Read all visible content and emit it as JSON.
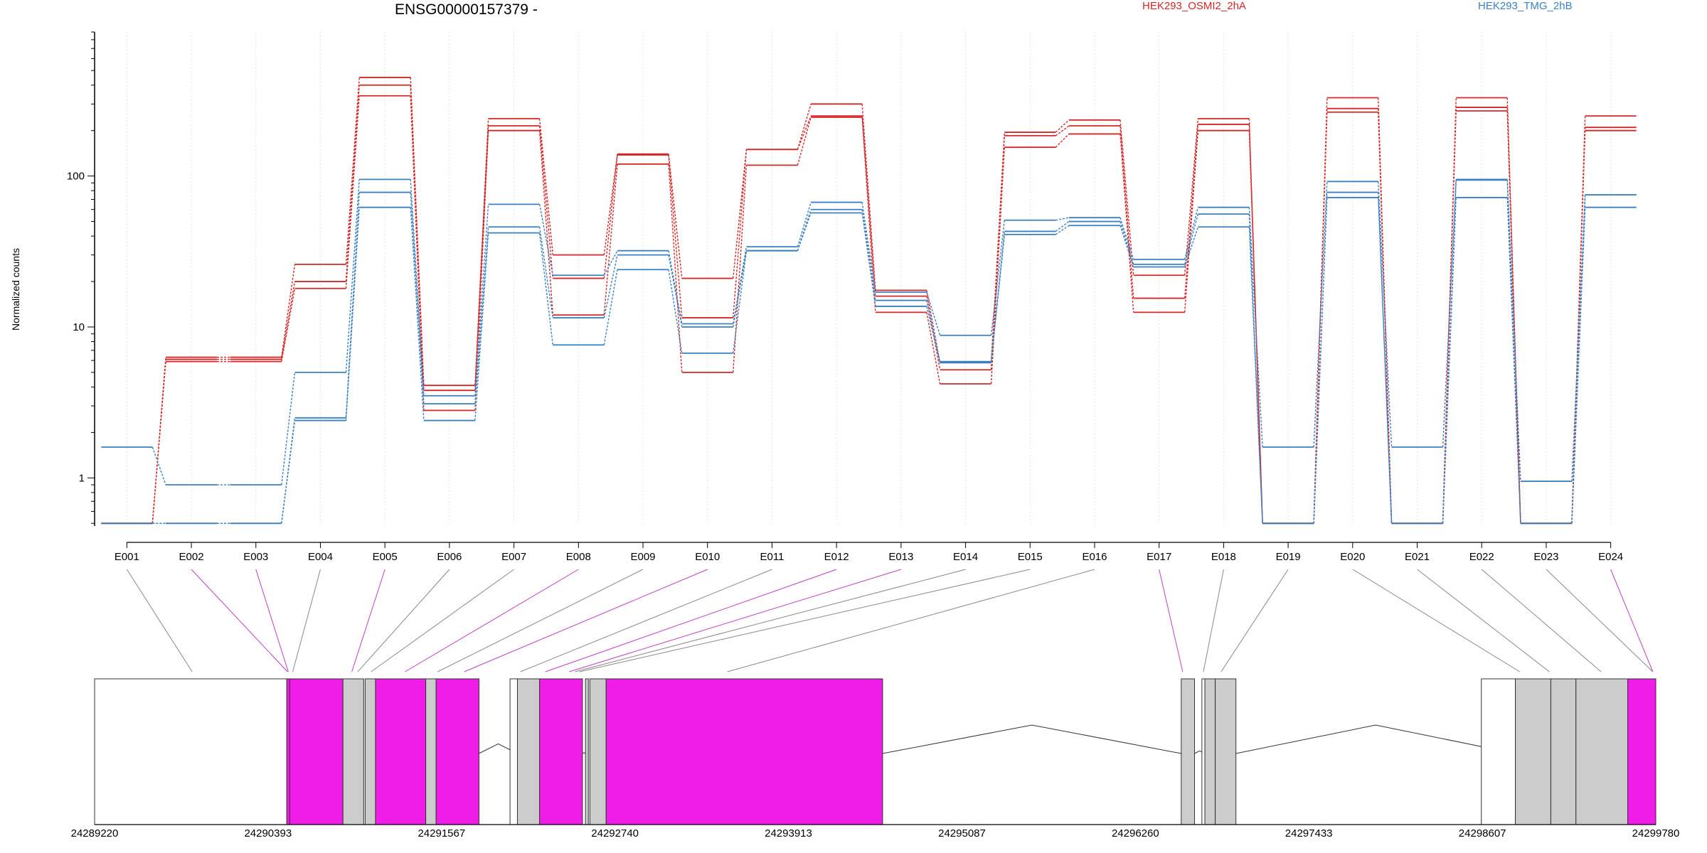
{
  "title": "ENSG00000157379 -",
  "ylabel": "Normalized counts",
  "colors": {
    "conditionA": "#d62728",
    "conditionB": "#3b80c0",
    "exon_highlight": "#f01de8",
    "exon_normal": "#cccccc",
    "link_plain": "#888888"
  },
  "legend": [
    {
      "label": "HEK293_OSMI2_2hA",
      "color": "#d62728"
    },
    {
      "label": "HEK293_TMG_2hB",
      "color": "#3b80c0"
    }
  ],
  "chart_data": {
    "type": "line",
    "y_scale": "log",
    "ylabel": "Normalized counts",
    "y_ticks": [
      "1",
      "10",
      "100"
    ],
    "y_tick_values": [
      1,
      10,
      100
    ],
    "ylim": [
      0.48,
      900
    ],
    "categories": [
      "E001",
      "E002",
      "E003",
      "E004",
      "E005",
      "E006",
      "E007",
      "E008",
      "E009",
      "E010",
      "E011",
      "E012",
      "E013",
      "E014",
      "E015",
      "E016",
      "E017",
      "E018",
      "E019",
      "E020",
      "E021",
      "E022",
      "E023",
      "E024"
    ],
    "highlighted_exons": [
      "E002",
      "E003",
      "E005",
      "E008",
      "E010",
      "E012",
      "E013",
      "E017",
      "E024"
    ],
    "series": [
      {
        "name": "HEK293_OSMI2_2hA",
        "group": "A",
        "values": [
          0.5,
          6.3,
          6.3,
          26,
          450,
          4.1,
          240,
          30,
          140,
          21,
          150,
          300,
          17.5,
          5.8,
          195,
          235,
          22,
          240,
          0.5,
          330,
          0.5,
          330,
          0.5,
          250
        ]
      },
      {
        "name": "HEK293_OSMI2_2hA",
        "group": "A",
        "values": [
          0.5,
          6.1,
          6.1,
          20,
          400,
          3.8,
          215,
          21,
          138,
          11.5,
          150,
          250,
          16,
          5.2,
          185,
          215,
          15.5,
          220,
          0.5,
          280,
          0.5,
          285,
          0.5,
          210
        ]
      },
      {
        "name": "HEK293_OSMI2_2hA",
        "group": "A",
        "values": [
          0.5,
          5.9,
          5.9,
          18,
          340,
          2.8,
          200,
          12,
          120,
          5,
          118,
          245,
          12.5,
          4.2,
          155,
          190,
          12.5,
          200,
          0.5,
          265,
          0.5,
          270,
          0.5,
          200
        ]
      },
      {
        "name": "HEK293_TMG_2hB",
        "group": "B",
        "values": [
          1.6,
          0.9,
          0.9,
          5,
          95,
          3.5,
          65,
          22,
          32,
          10.5,
          34,
          67,
          17,
          8.8,
          51,
          53,
          28,
          62,
          1.6,
          92,
          1.6,
          95,
          0.95,
          75
        ]
      },
      {
        "name": "HEK293_TMG_2hB",
        "group": "B",
        "values": [
          0.5,
          0.5,
          0.5,
          2.5,
          78,
          3.1,
          46,
          11.5,
          30,
          10,
          32,
          60,
          15,
          5.9,
          43,
          50,
          26,
          56,
          0.5,
          78,
          0.5,
          94,
          0.5,
          75
        ]
      },
      {
        "name": "HEK293_TMG_2hB",
        "group": "B",
        "values": [
          0.5,
          0.5,
          0.5,
          2.4,
          62,
          2.4,
          42,
          7.6,
          24,
          6.7,
          32,
          57,
          13.7,
          5.8,
          41,
          47,
          25,
          46,
          0.5,
          72,
          0.5,
          72,
          0.5,
          62
        ]
      }
    ],
    "gene_model": {
      "x_ticks": [
        "24289220",
        "24290393",
        "24291567",
        "24292740",
        "24293913",
        "24295087",
        "24296260",
        "24297433",
        "24298607",
        "24299780"
      ],
      "x_tick_values": [
        24289220,
        24290393,
        24291567,
        24292740,
        24293913,
        24295087,
        24296260,
        24297433,
        24298607,
        24299780
      ],
      "xlim": [
        24289220,
        24299780
      ],
      "exons": [
        {
          "start": 24290520,
          "end": 24290540,
          "highlight": true
        },
        {
          "start": 24290540,
          "end": 24290900,
          "highlight": true
        },
        {
          "start": 24290900,
          "end": 24291040,
          "highlight": false
        },
        {
          "start": 24291050,
          "end": 24291120,
          "highlight": false
        },
        {
          "start": 24291120,
          "end": 24291460,
          "highlight": true
        },
        {
          "start": 24291460,
          "end": 24291530,
          "highlight": false
        },
        {
          "start": 24291530,
          "end": 24291820,
          "highlight": true
        },
        {
          "start": 24292080,
          "end": 24292230,
          "highlight": false
        },
        {
          "start": 24292230,
          "end": 24292520,
          "highlight": true
        },
        {
          "start": 24292540,
          "end": 24292560,
          "highlight": false
        },
        {
          "start": 24292570,
          "end": 24292680,
          "highlight": false
        },
        {
          "start": 24292680,
          "end": 24294550,
          "highlight": true
        },
        {
          "start": 24296570,
          "end": 24296660,
          "highlight": false
        },
        {
          "start": 24296730,
          "end": 24296800,
          "highlight": false
        },
        {
          "start": 24296800,
          "end": 24296940,
          "highlight": false
        },
        {
          "start": 24298830,
          "end": 24299070,
          "highlight": false
        },
        {
          "start": 24299070,
          "end": 24299240,
          "highlight": false
        },
        {
          "start": 24299240,
          "end": 24299590,
          "highlight": false
        },
        {
          "start": 24299590,
          "end": 24299780,
          "highlight": true
        }
      ],
      "links": [
        24289880,
        24290525,
        24290530,
        24290560,
        24290960,
        24291000,
        24291090,
        24291320,
        24291540,
        24291720,
        24292100,
        24292270,
        24292430,
        24292470,
        24292500,
        24293500,
        24296580,
        24296720,
        24296840,
        24298860,
        24299060,
        24299410,
        24299760
      ]
    }
  }
}
